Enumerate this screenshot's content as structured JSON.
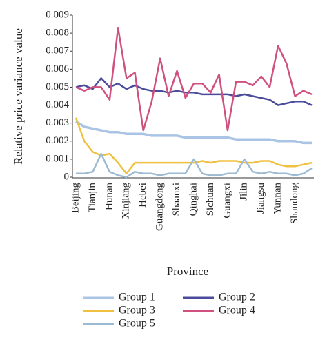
{
  "chart_data": {
    "type": "line",
    "x_label": "Province",
    "y_label": "Relative price variance value",
    "categories": [
      "Beijing",
      null,
      "Tianjin",
      null,
      "Hunan",
      null,
      "Xinjiang",
      null,
      "Hebei",
      null,
      "Guangdong",
      null,
      "Shaanxi",
      null,
      "Qinghai",
      null,
      "Sichuan",
      null,
      "Guangxi",
      null,
      "Jilin",
      null,
      "Jiangsu",
      null,
      "Yunnan",
      null,
      "Shandong",
      null,
      null
    ],
    "ylim": [
      0,
      0.009
    ],
    "yticks": [
      0,
      0.001,
      0.002,
      0.003,
      0.004,
      0.005,
      0.006,
      0.007,
      0.008,
      0.009
    ],
    "series": [
      {
        "name": "Group 1",
        "color": "#a9c4e4",
        "values": [
          0.0031,
          0.0028,
          0.0027,
          0.0026,
          0.0025,
          0.0025,
          0.0024,
          0.0024,
          0.0024,
          0.0023,
          0.0023,
          0.0023,
          0.0023,
          0.0022,
          0.0022,
          0.0022,
          0.0022,
          0.0022,
          0.0022,
          0.0021,
          0.0021,
          0.0021,
          0.0021,
          0.0021,
          0.002,
          0.002,
          0.002,
          0.0019,
          0.0019
        ]
      },
      {
        "name": "Group 2",
        "color": "#4b4b9b",
        "values": [
          0.005,
          0.0051,
          0.0049,
          0.0055,
          0.005,
          0.0052,
          0.0049,
          0.0051,
          0.0049,
          0.0048,
          0.0048,
          0.0047,
          0.0048,
          0.0047,
          0.0047,
          0.0046,
          0.0046,
          0.0046,
          0.0046,
          0.0045,
          0.0046,
          0.0045,
          0.0044,
          0.0043,
          0.004,
          0.0041,
          0.0042,
          0.0042,
          0.004
        ]
      },
      {
        "name": "Group 3",
        "color": "#f0c040",
        "values": [
          0.0033,
          0.002,
          0.0014,
          0.0012,
          0.0013,
          0.0008,
          0.0002,
          0.0008,
          0.0008,
          0.0008,
          0.0008,
          0.0008,
          0.0008,
          0.0008,
          0.0008,
          0.0009,
          0.0008,
          0.0009,
          0.0009,
          0.0009,
          0.0008,
          0.0008,
          0.0009,
          0.0009,
          0.0007,
          0.0006,
          0.0006,
          0.0007,
          0.0008
        ]
      },
      {
        "name": "Group 4",
        "color": "#d0507f",
        "values": [
          0.005,
          0.0048,
          0.005,
          0.005,
          0.0043,
          0.0083,
          0.0055,
          0.0058,
          0.0026,
          0.0042,
          0.0066,
          0.0045,
          0.0059,
          0.0044,
          0.0052,
          0.0052,
          0.0047,
          0.0057,
          0.0026,
          0.0053,
          0.0053,
          0.0051,
          0.0056,
          0.005,
          0.0073,
          0.0063,
          0.0045,
          0.0048,
          0.0046
        ]
      },
      {
        "name": "Group 5",
        "color": "#9cbad2",
        "values": [
          0.0002,
          0.0002,
          0.0003,
          0.0013,
          0.0003,
          0.0001,
          0,
          0.0003,
          0.0002,
          0.0002,
          0.0001,
          0.0002,
          0.0002,
          0.0002,
          0.001,
          0.0002,
          0.0001,
          0.0001,
          0.0002,
          0.0002,
          0.001,
          0.0003,
          0.0002,
          0.0003,
          0.0002,
          0.0002,
          0.0001,
          0.0002,
          0.0005
        ]
      }
    ]
  }
}
